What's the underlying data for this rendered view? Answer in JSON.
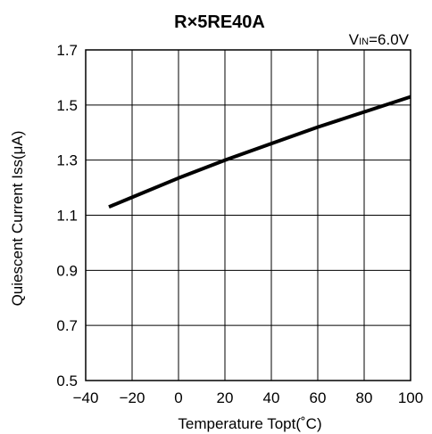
{
  "chart_data": {
    "type": "line",
    "title": "R×5RE40A",
    "condition": {
      "prefix": "V",
      "sub": "IN",
      "suffix": "=6.0V"
    },
    "xlabel": "Temperature Topt(˚C)",
    "ylabel": "Quiescent Current Iss(μA)",
    "xlim": [
      -40,
      100
    ],
    "ylim": [
      0.5,
      1.7
    ],
    "xticks": [
      -40,
      -20,
      0,
      20,
      40,
      60,
      80,
      100
    ],
    "yticks": [
      0.5,
      0.7,
      0.9,
      1.1,
      1.3,
      1.5,
      1.7
    ],
    "ytick_labels": [
      "0.5",
      "0.7",
      "0.9",
      "1.1",
      "1.3",
      "1.5",
      "1.7"
    ],
    "xtick_labels": [
      "−40",
      "−20",
      "0",
      "20",
      "40",
      "60",
      "80",
      "100"
    ],
    "grid": true,
    "series": [
      {
        "color": "#000000",
        "x": [
          -30,
          -20,
          0,
          20,
          40,
          60,
          80,
          100
        ],
        "y": [
          1.13,
          1.165,
          1.235,
          1.3,
          1.36,
          1.42,
          1.475,
          1.53
        ]
      }
    ]
  }
}
